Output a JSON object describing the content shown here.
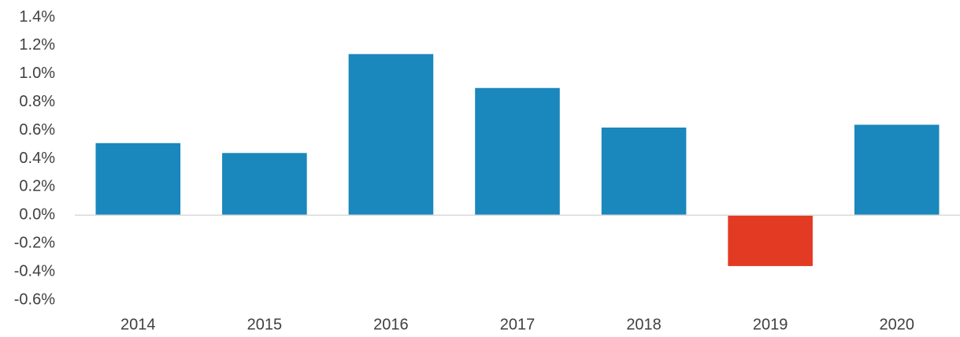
{
  "chart_data": {
    "type": "bar",
    "categories": [
      "2014",
      "2015",
      "2016",
      "2017",
      "2018",
      "2019",
      "2020"
    ],
    "values": [
      0.51,
      0.44,
      1.14,
      0.9,
      0.62,
      -0.36,
      0.64
    ],
    "colors": [
      "#1a87bd",
      "#1a87bd",
      "#1a87bd",
      "#1a87bd",
      "#1a87bd",
      "#e33a24",
      "#1a87bd"
    ],
    "ylim": [
      -0.6,
      1.4
    ],
    "yticks": [
      {
        "value": -0.6,
        "label": "-0.6%"
      },
      {
        "value": -0.4,
        "label": "-0.4%"
      },
      {
        "value": -0.2,
        "label": "-0.2%"
      },
      {
        "value": 0,
        "label": "0.0%"
      },
      {
        "value": 0.2,
        "label": "0.2%"
      },
      {
        "value": 0.4,
        "label": "0.4%"
      },
      {
        "value": 0.6,
        "label": "0.6%"
      },
      {
        "value": 0.8,
        "label": "0.8%"
      },
      {
        "value": 1.0,
        "label": "1.0%"
      },
      {
        "value": 1.2,
        "label": "1.2%"
      },
      {
        "value": 1.4,
        "label": "1.4%"
      }
    ],
    "grid": false
  }
}
